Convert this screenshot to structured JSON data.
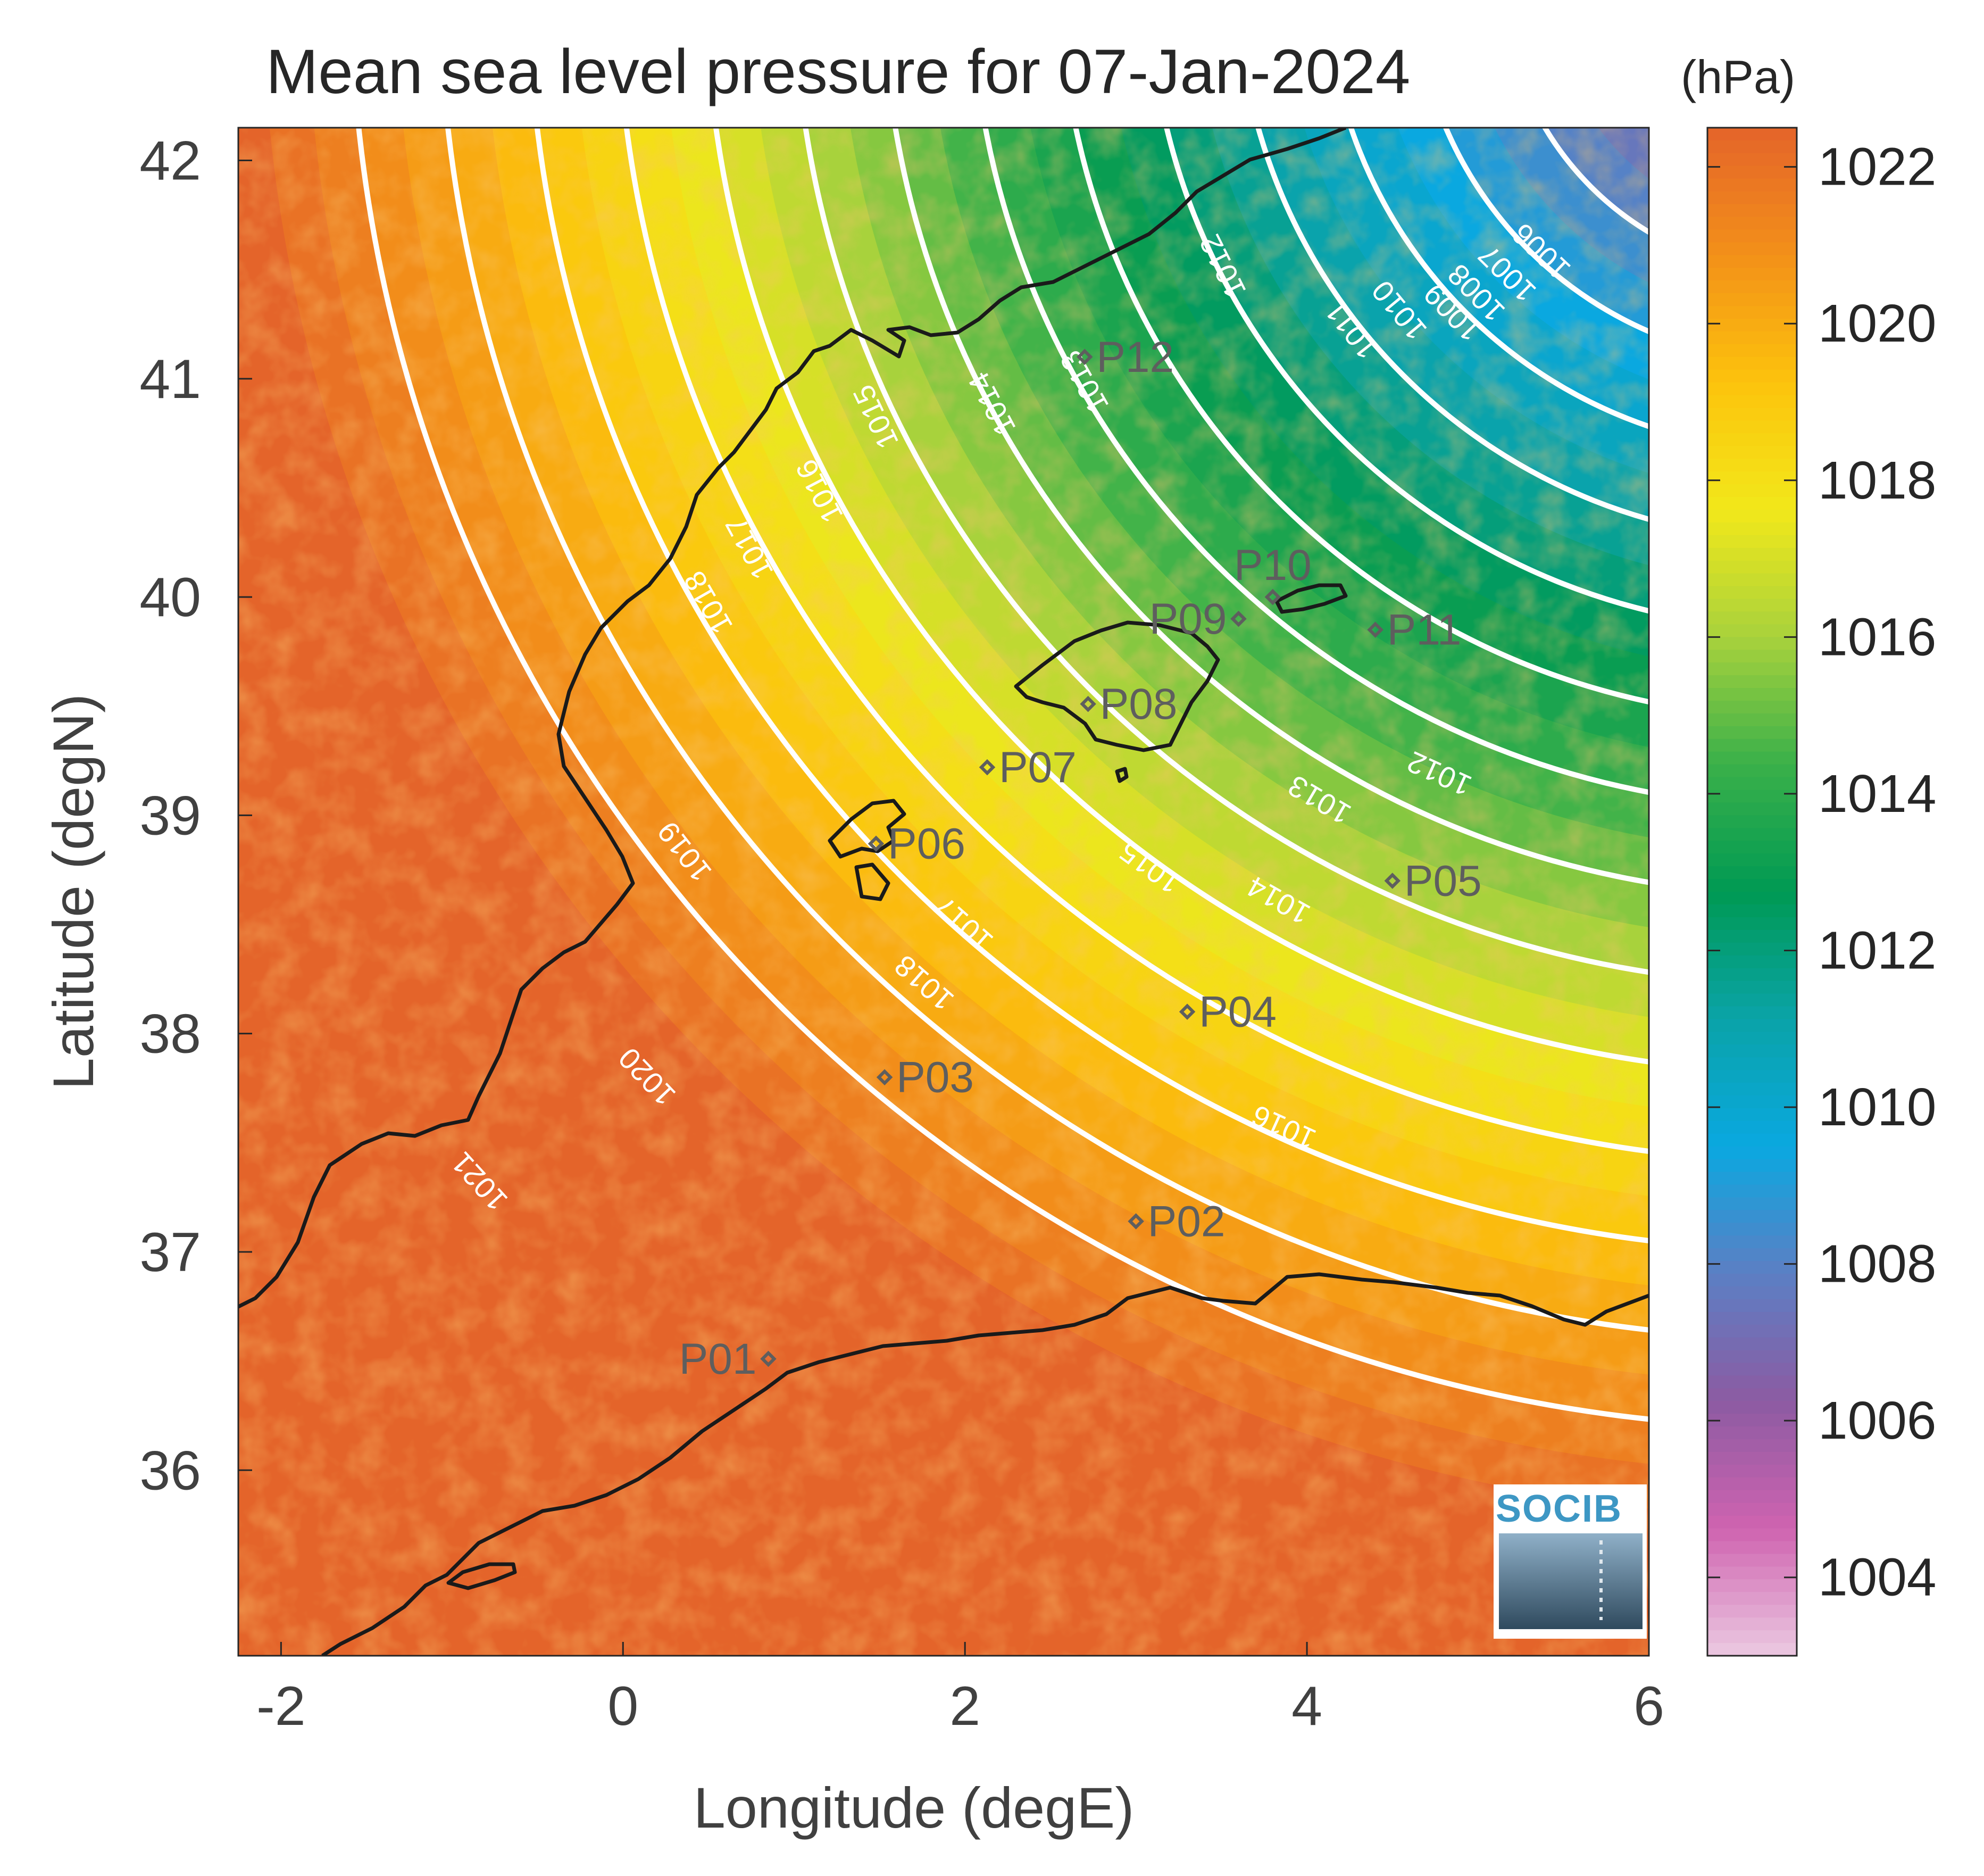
{
  "chart_data": {
    "type": "heatmap",
    "title": "Mean sea level pressure for 07-Jan-2024",
    "xlabel": "Longitude (degE)",
    "ylabel": "Latitude (degN)",
    "xlim": [
      -2.25,
      6
    ],
    "ylim": [
      35.15,
      42.15
    ],
    "x_ticks": [
      -2,
      0,
      2,
      4,
      6
    ],
    "x_tick_labels": [
      "-2",
      "0",
      "2",
      "4",
      "6"
    ],
    "y_ticks": [
      36,
      37,
      38,
      39,
      40,
      41,
      42
    ],
    "y_tick_labels": [
      "36",
      "37",
      "38",
      "39",
      "40",
      "41",
      "42"
    ],
    "colorbar": {
      "unit": "(hPa)",
      "range": [
        1003,
        1022.5
      ],
      "ticks": [
        1004,
        1006,
        1008,
        1010,
        1012,
        1014,
        1016,
        1018,
        1020,
        1022
      ],
      "tick_labels": [
        "1004",
        "1006",
        "1008",
        "1010",
        "1012",
        "1014",
        "1016",
        "1018",
        "1020",
        "1022"
      ],
      "colormap": [
        "#ebc9e1",
        "#cf63b0",
        "#8c5ba2",
        "#5c7fc4",
        "#0aa8e0",
        "#0aa3a8",
        "#009a53",
        "#3ab04a",
        "#a8d23c",
        "#f2e81a",
        "#fcc30c",
        "#f39019",
        "#e4642a"
      ],
      "land_color": "#e4642a"
    },
    "contour_levels": [
      {
        "value": 1006,
        "label": "1006"
      },
      {
        "value": 1007,
        "label": "1007"
      },
      {
        "value": 1008,
        "label": "1008"
      },
      {
        "value": 1009,
        "label": "1009"
      },
      {
        "value": 1010,
        "label": "1010"
      },
      {
        "value": 1011,
        "label": "1011"
      },
      {
        "value": 1012,
        "label": "1012"
      },
      {
        "value": 1013,
        "label": "1013"
      },
      {
        "value": 1014,
        "label": "1014"
      },
      {
        "value": 1015,
        "label": "1015"
      },
      {
        "value": 1016,
        "label": "1016"
      },
      {
        "value": 1017,
        "label": "1017"
      },
      {
        "value": 1018,
        "label": "1018"
      },
      {
        "value": 1019,
        "label": "1019"
      },
      {
        "value": 1020,
        "label": "1020"
      },
      {
        "value": 1021,
        "label": "1021"
      }
    ],
    "contour_labels": [
      {
        "text": "1006",
        "lon": 5.38,
        "lat": 41.59
      },
      {
        "text": "1007",
        "lon": 5.18,
        "lat": 41.49
      },
      {
        "text": "1008",
        "lon": 5.0,
        "lat": 41.4
      },
      {
        "text": "1009",
        "lon": 4.86,
        "lat": 41.31
      },
      {
        "text": "1010",
        "lon": 4.55,
        "lat": 41.32
      },
      {
        "text": "1011",
        "lon": 4.27,
        "lat": 41.23
      },
      {
        "text": "1012",
        "lon": 3.52,
        "lat": 41.52
      },
      {
        "text": "1013",
        "lon": 2.71,
        "lat": 40.99
      },
      {
        "text": "1014",
        "lon": 2.17,
        "lat": 40.89
      },
      {
        "text": "1015",
        "lon": 1.49,
        "lat": 40.83
      },
      {
        "text": "1016",
        "lon": 1.16,
        "lat": 40.49
      },
      {
        "text": "1017",
        "lon": 0.75,
        "lat": 40.23
      },
      {
        "text": "1018",
        "lon": 0.51,
        "lat": 39.98
      },
      {
        "text": "1019",
        "lon": 0.37,
        "lat": 38.84
      },
      {
        "text": "1020",
        "lon": 0.15,
        "lat": 37.81
      },
      {
        "text": "1021",
        "lon": -0.83,
        "lat": 37.33
      },
      {
        "text": "1018",
        "lon": 1.77,
        "lat": 38.24
      },
      {
        "text": "1017",
        "lon": 2.0,
        "lat": 38.51
      },
      {
        "text": "1015",
        "lon": 3.09,
        "lat": 38.77
      },
      {
        "text": "1014",
        "lon": 3.84,
        "lat": 38.62
      },
      {
        "text": "1013",
        "lon": 4.08,
        "lat": 39.08
      },
      {
        "text": "1012",
        "lon": 4.78,
        "lat": 39.2
      },
      {
        "text": "1016",
        "lon": 3.87,
        "lat": 37.58
      }
    ],
    "stations": [
      {
        "name": "P01",
        "lon": 0.85,
        "lat": 36.51,
        "label_side": "left"
      },
      {
        "name": "P02",
        "lon": 3.0,
        "lat": 37.14,
        "label_side": "right"
      },
      {
        "name": "P03",
        "lon": 1.53,
        "lat": 37.8,
        "label_side": "right"
      },
      {
        "name": "P04",
        "lon": 3.3,
        "lat": 38.1,
        "label_side": "right"
      },
      {
        "name": "P05",
        "lon": 4.5,
        "lat": 38.7,
        "label_side": "right"
      },
      {
        "name": "P06",
        "lon": 1.48,
        "lat": 38.87,
        "label_side": "right"
      },
      {
        "name": "P07",
        "lon": 2.13,
        "lat": 39.22,
        "label_side": "right"
      },
      {
        "name": "P08",
        "lon": 2.72,
        "lat": 39.51,
        "label_side": "right"
      },
      {
        "name": "P09",
        "lon": 3.6,
        "lat": 39.9,
        "label_side": "left"
      },
      {
        "name": "P10",
        "lon": 3.8,
        "lat": 40.0,
        "label_side": "above"
      },
      {
        "name": "P11",
        "lon": 4.4,
        "lat": 39.85,
        "label_side": "right"
      },
      {
        "name": "P12",
        "lon": 2.7,
        "lat": 41.1,
        "label_side": "right"
      }
    ]
  },
  "logo": {
    "text": "SOCIB"
  }
}
